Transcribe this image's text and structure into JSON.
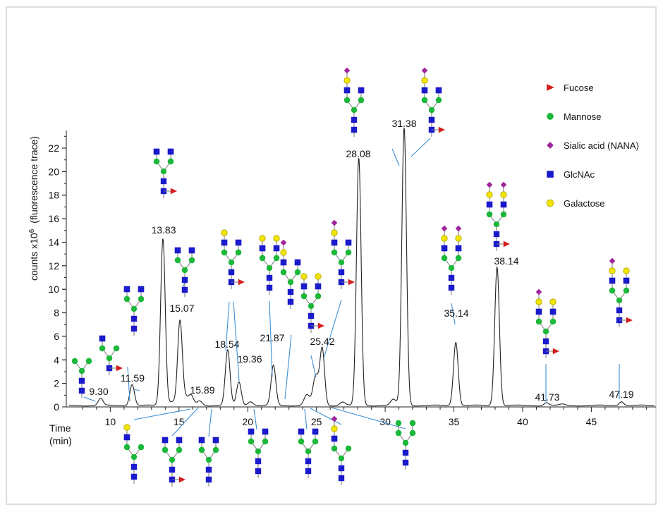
{
  "chart_data": {
    "type": "line",
    "ylabel": "counts x10",
    "ylabel_exp": "6",
    "ylabel_suffix": "(fluorescence trace)",
    "xlabel_line1": "Time",
    "xlabel_line2": "(min)",
    "xlim": [
      6.8,
      49.7
    ],
    "ylim": [
      0,
      23.5
    ],
    "x_ticks": [
      10,
      15,
      20,
      25,
      30,
      35,
      40,
      45
    ],
    "y_ticks": [
      0,
      2,
      4,
      6,
      8,
      10,
      12,
      14,
      16,
      18,
      20,
      22
    ],
    "grid": false,
    "legend_position": "top-right",
    "legend": [
      {
        "name": "Fucose",
        "shape": "triangle",
        "color": "#d41c1c"
      },
      {
        "name": "Mannose",
        "shape": "circle",
        "color": "#1cb83a"
      },
      {
        "name": "Sialic acid (NANA)",
        "shape": "diamond",
        "color": "#a0259c"
      },
      {
        "name": "GlcNAc",
        "shape": "square",
        "color": "#1a1acc"
      },
      {
        "name": "Galactose",
        "shape": "circle",
        "color": "#f2e600"
      }
    ],
    "peaks": [
      {
        "label": "9.30",
        "x": 9.3,
        "height": 0.6
      },
      {
        "label": "11.59",
        "x": 11.59,
        "height": 1.8
      },
      {
        "label": "13.83",
        "x": 13.83,
        "height": 14.2
      },
      {
        "label": "15.07",
        "x": 15.07,
        "height": 7.2
      },
      {
        "label": "15.89",
        "x": 15.89,
        "height": 0.8
      },
      {
        "label": "18.54",
        "x": 18.54,
        "height": 4.7
      },
      {
        "label": "19.36",
        "x": 19.36,
        "height": 2.0
      },
      {
        "label": "21.87",
        "x": 21.87,
        "height": 3.4
      },
      {
        "label": "25.42",
        "x": 25.42,
        "height": 4.8
      },
      {
        "label": "28.08",
        "x": 28.08,
        "height": 21.0
      },
      {
        "label": "31.38",
        "x": 31.38,
        "height": 23.6
      },
      {
        "label": "35.14",
        "x": 35.14,
        "height": 5.4
      },
      {
        "label": "38.14",
        "x": 38.14,
        "height": 11.8
      },
      {
        "label": "41.73",
        "x": 41.73,
        "height": 0.25
      },
      {
        "label": "47.19",
        "x": 47.19,
        "height": 0.35
      }
    ],
    "minor_peaks": [
      {
        "x": 14.5,
        "height": 0.35
      },
      {
        "x": 15.5,
        "height": 0.6
      },
      {
        "x": 16.5,
        "height": 0.4
      },
      {
        "x": 20.2,
        "height": 0.35
      },
      {
        "x": 24.3,
        "height": 0.9
      },
      {
        "x": 24.95,
        "height": 2.5
      },
      {
        "x": 26.9,
        "height": 0.3
      },
      {
        "x": 30.6,
        "height": 0.5
      },
      {
        "x": 42.9,
        "height": 0.1
      }
    ]
  },
  "colors": {
    "fucose": "#d41c1c",
    "mannose": "#1cb83a",
    "sialic": "#a0259c",
    "glcnac": "#1a1acc",
    "galactose": "#f2e600",
    "leader": "#3a8fd6"
  },
  "glycans": [
    {
      "id": "g930",
      "peak": "9.30"
    },
    {
      "id": "g1159a",
      "peak": "11.59"
    },
    {
      "id": "g1159b",
      "peak": "11.59"
    },
    {
      "id": "g1383",
      "peak": "13.83"
    },
    {
      "id": "g1507",
      "peak": "15.07"
    },
    {
      "id": "g1854",
      "peak": "18.54"
    },
    {
      "id": "g2187a",
      "peak": "21.87"
    },
    {
      "id": "g2187b",
      "peak": "21.87"
    },
    {
      "id": "g2542a",
      "peak": "25.42"
    },
    {
      "id": "g2542b",
      "peak": "25.42"
    },
    {
      "id": "g2808",
      "peak": "28.08"
    },
    {
      "id": "g3138",
      "peak": "31.38"
    },
    {
      "id": "g3514",
      "peak": "35.14"
    },
    {
      "id": "g3814",
      "peak": "38.14"
    },
    {
      "id": "g4173",
      "peak": "41.73"
    },
    {
      "id": "g4719",
      "peak": "47.19"
    },
    {
      "id": "b1589",
      "peak": "15.89"
    },
    {
      "id": "b16a",
      "peak": "15.89"
    },
    {
      "id": "b16b",
      "peak": "15.89"
    },
    {
      "id": "b20",
      "peak": "19.36"
    },
    {
      "id": "b24",
      "peak": "21.87"
    },
    {
      "id": "b26",
      "peak": "25.42"
    },
    {
      "id": "b30",
      "peak": "28.08"
    }
  ]
}
